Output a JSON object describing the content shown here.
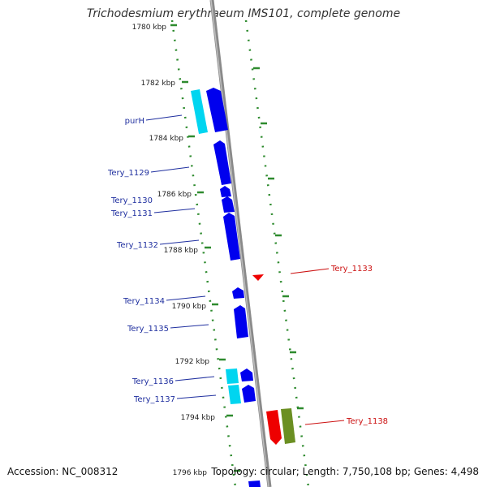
{
  "title": "Trichodesmium erythraeum IMS101, complete genome",
  "footer": {
    "accession": "Accession: NC_008312",
    "summary": "Topology: circular; Length: 7,750,108 bp; Genes: 4,498"
  },
  "colors": {
    "forward_gene": "#0000ee",
    "reverse_gene": "#ee0000",
    "cds_light": "#00d5f0",
    "rna_olive": "#6b8f22",
    "tick": "#2e8b2e",
    "backbone": "#888888",
    "label_forward": "#1f2f9f",
    "label_reverse": "#cc1111"
  },
  "ticks": [
    {
      "label": "1780 kbp"
    },
    {
      "label": "1782 kbp"
    },
    {
      "label": "1784 kbp"
    },
    {
      "label": "1786 kbp"
    },
    {
      "label": "1788 kbp"
    },
    {
      "label": "1790 kbp"
    },
    {
      "label": "1792 kbp"
    },
    {
      "label": "1794 kbp"
    },
    {
      "label": "1796 kbp"
    }
  ],
  "gene_labels": [
    {
      "name": "purH",
      "strand": "forward"
    },
    {
      "name": "Tery_1129",
      "strand": "forward"
    },
    {
      "name": "Tery_1130",
      "strand": "forward"
    },
    {
      "name": "Tery_1131",
      "strand": "forward"
    },
    {
      "name": "Tery_1132",
      "strand": "forward"
    },
    {
      "name": "Tery_1133",
      "strand": "reverse"
    },
    {
      "name": "Tery_1134",
      "strand": "forward"
    },
    {
      "name": "Tery_1135",
      "strand": "forward"
    },
    {
      "name": "Tery_1136",
      "strand": "forward"
    },
    {
      "name": "Tery_1137",
      "strand": "forward"
    },
    {
      "name": "Tery_1138",
      "strand": "reverse"
    }
  ]
}
